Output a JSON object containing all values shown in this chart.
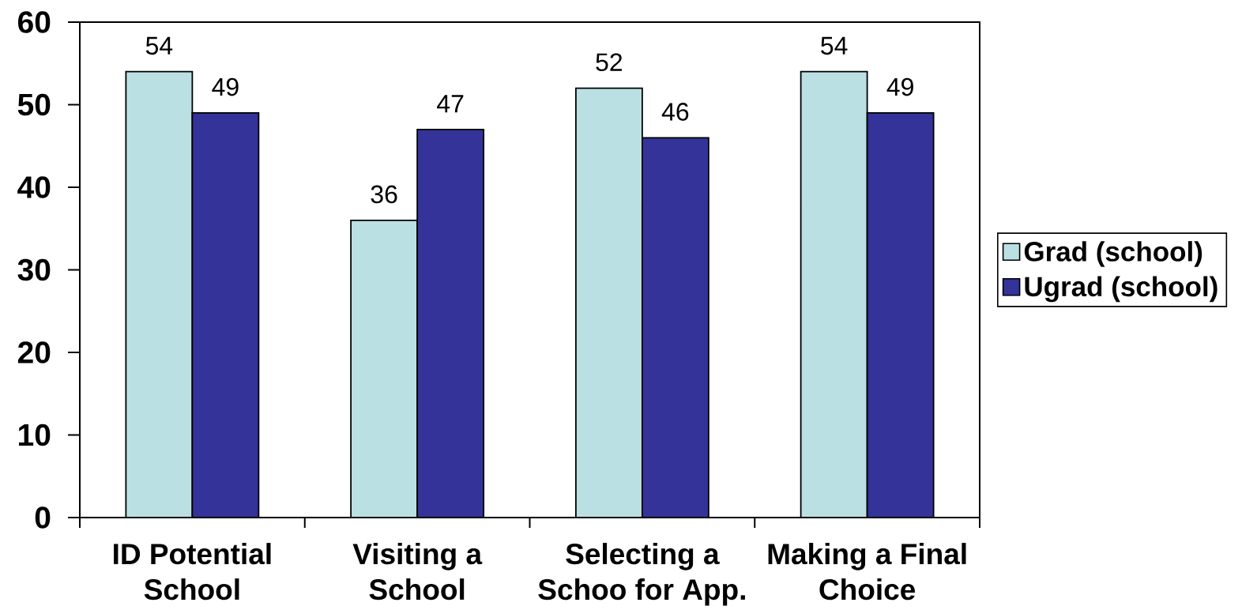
{
  "chart_data": {
    "type": "bar",
    "categories": [
      "ID Potential School",
      "Visiting a School",
      "Selecting a Schoo for App.",
      "Making a Final Choice"
    ],
    "series": [
      {
        "name": "Grad (school)",
        "color": "#bbe0e3",
        "values": [
          54,
          36,
          52,
          54
        ]
      },
      {
        "name": "Ugrad (school)",
        "color": "#333399",
        "values": [
          49,
          47,
          46,
          49
        ]
      }
    ],
    "ylim": [
      0,
      60
    ],
    "yticks": [
      0,
      10,
      20,
      30,
      40,
      50,
      60
    ],
    "data_labels": true,
    "legend": "right"
  }
}
